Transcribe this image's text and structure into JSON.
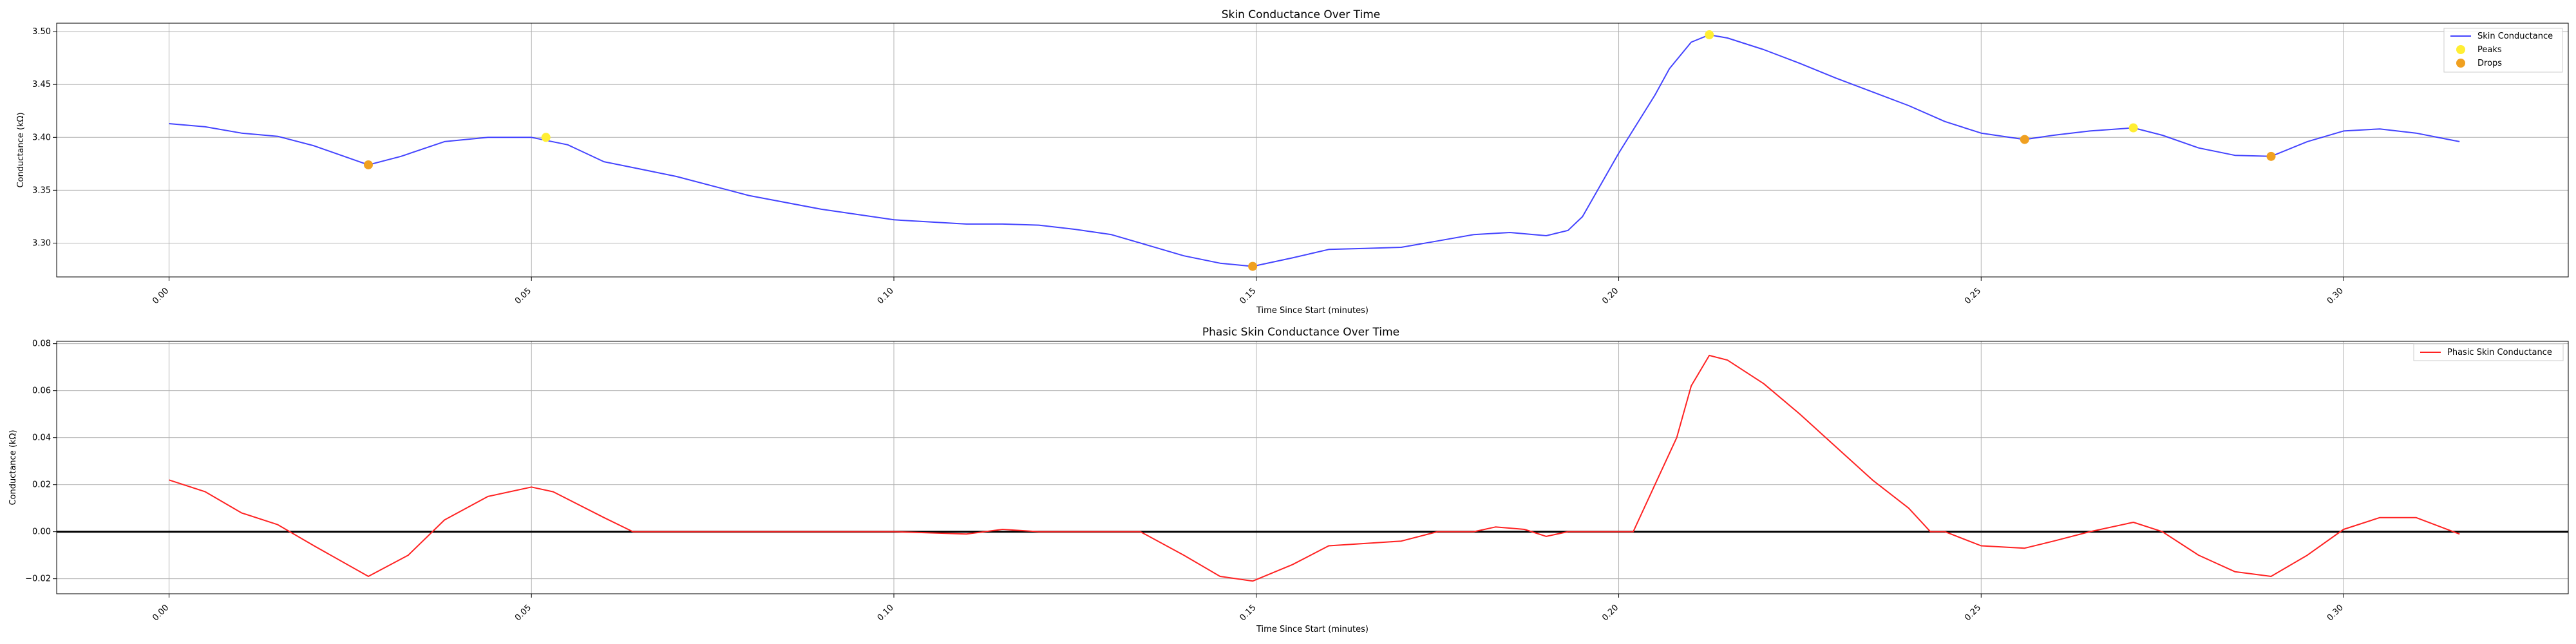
{
  "chart_data": [
    {
      "type": "line",
      "title": "Skin Conductance Over Time",
      "xlabel": "Time Since Start (minutes)",
      "ylabel": "Conductance (kΩ)",
      "xlim": [
        -0.0155,
        0.331
      ],
      "ylim": [
        3.268,
        3.508
      ],
      "xticks": [
        "0.00",
        "0.05",
        "0.10",
        "0.15",
        "0.20",
        "0.25",
        "0.30"
      ],
      "yticks": [
        "3.30",
        "3.35",
        "3.40",
        "3.45",
        "3.50"
      ],
      "grid": true,
      "legend_position": "top-right",
      "series": [
        {
          "name": "Skin Conductance",
          "color": "#4444ff",
          "x": [
            0.0,
            0.005,
            0.01,
            0.015,
            0.02,
            0.0275,
            0.032,
            0.038,
            0.044,
            0.05,
            0.055,
            0.06,
            0.065,
            0.07,
            0.08,
            0.09,
            0.1,
            0.105,
            0.11,
            0.115,
            0.12,
            0.125,
            0.13,
            0.135,
            0.14,
            0.145,
            0.1495,
            0.155,
            0.16,
            0.165,
            0.17,
            0.175,
            0.18,
            0.185,
            0.19,
            0.193,
            0.195,
            0.2,
            0.205,
            0.207,
            0.21,
            0.2125,
            0.215,
            0.22,
            0.225,
            0.23,
            0.235,
            0.24,
            0.245,
            0.25,
            0.256,
            0.26,
            0.265,
            0.271,
            0.275,
            0.28,
            0.285,
            0.29,
            0.295,
            0.3,
            0.305,
            0.31,
            0.316
          ],
          "y": [
            3.413,
            3.41,
            3.404,
            3.401,
            3.392,
            3.374,
            3.382,
            3.396,
            3.4,
            3.4,
            3.393,
            3.377,
            3.37,
            3.363,
            3.345,
            3.332,
            3.322,
            3.32,
            3.318,
            3.318,
            3.317,
            3.313,
            3.308,
            3.298,
            3.288,
            3.281,
            3.278,
            3.286,
            3.294,
            3.295,
            3.296,
            3.302,
            3.308,
            3.31,
            3.307,
            3.312,
            3.325,
            3.385,
            3.44,
            3.465,
            3.49,
            3.497,
            3.494,
            3.483,
            3.47,
            3.456,
            3.443,
            3.43,
            3.415,
            3.404,
            3.398,
            3.402,
            3.406,
            3.409,
            3.402,
            3.39,
            3.383,
            3.382,
            3.396,
            3.406,
            3.408,
            3.404,
            3.396
          ]
        }
      ],
      "markers": [
        {
          "name": "Peaks",
          "color": "#ffee33",
          "x": [
            0.052,
            0.2125,
            0.271
          ],
          "y": [
            3.4,
            3.497,
            3.409
          ]
        },
        {
          "name": "Drops",
          "color": "#f0a020",
          "x": [
            0.0275,
            0.1495,
            0.256,
            0.29
          ],
          "y": [
            3.374,
            3.278,
            3.398,
            3.382
          ]
        }
      ]
    },
    {
      "type": "line",
      "title": "Phasic Skin Conductance Over Time",
      "xlabel": "Time Since Start (minutes)",
      "ylabel": "Conductance (kΩ)",
      "xlim": [
        -0.0155,
        0.331
      ],
      "ylim": [
        -0.0264,
        0.081
      ],
      "xticks": [
        "0.00",
        "0.05",
        "0.10",
        "0.15",
        "0.20",
        "0.25",
        "0.30"
      ],
      "yticks": [
        "−0.02",
        "0.00",
        "0.02",
        "0.04",
        "0.06",
        "0.08"
      ],
      "grid": true,
      "zero_line": true,
      "legend_position": "top-right",
      "series": [
        {
          "name": "Phasic Skin Conductance",
          "color": "#ff2222",
          "x": [
            0.0,
            0.005,
            0.01,
            0.015,
            0.02,
            0.0275,
            0.033,
            0.038,
            0.044,
            0.05,
            0.053,
            0.06,
            0.064,
            0.07,
            0.08,
            0.09,
            0.1,
            0.11,
            0.115,
            0.12,
            0.13,
            0.134,
            0.14,
            0.145,
            0.1495,
            0.155,
            0.16,
            0.165,
            0.17,
            0.175,
            0.18,
            0.183,
            0.187,
            0.19,
            0.193,
            0.2,
            0.202,
            0.205,
            0.208,
            0.21,
            0.2125,
            0.215,
            0.22,
            0.225,
            0.23,
            0.235,
            0.24,
            0.243,
            0.245,
            0.25,
            0.256,
            0.26,
            0.265,
            0.271,
            0.275,
            0.28,
            0.285,
            0.29,
            0.295,
            0.3,
            0.305,
            0.31,
            0.316
          ],
          "y": [
            0.022,
            0.017,
            0.008,
            0.003,
            -0.006,
            -0.019,
            -0.01,
            0.005,
            0.015,
            0.019,
            0.017,
            0.006,
            0.0,
            0.0,
            0.0,
            0.0,
            0.0,
            -0.001,
            0.001,
            0.0,
            0.0,
            0.0,
            -0.01,
            -0.019,
            -0.021,
            -0.014,
            -0.006,
            -0.005,
            -0.004,
            0.0,
            0.0,
            0.002,
            0.001,
            -0.002,
            0.0,
            0.0,
            0.0,
            0.02,
            0.04,
            0.062,
            0.075,
            0.073,
            0.063,
            0.05,
            0.036,
            0.022,
            0.01,
            0.0,
            0.0,
            -0.006,
            -0.007,
            -0.004,
            0.0,
            0.004,
            0.0,
            -0.01,
            -0.017,
            -0.019,
            -0.01,
            0.001,
            0.006,
            0.006,
            -0.001
          ]
        }
      ]
    }
  ]
}
